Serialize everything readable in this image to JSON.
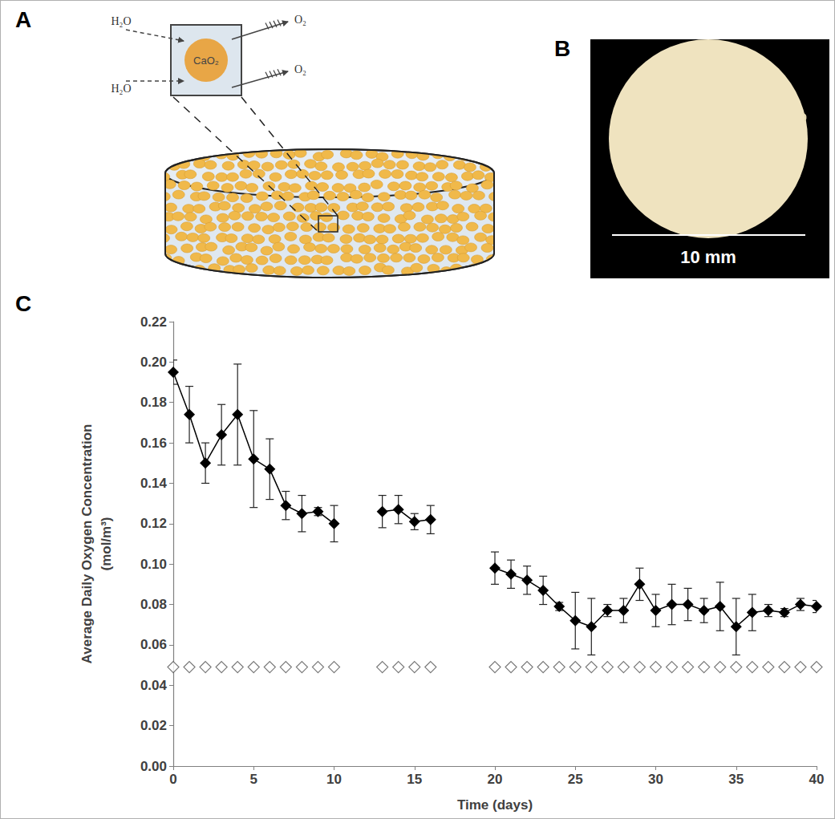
{
  "panels": {
    "letters": [
      "A",
      "B",
      "C"
    ],
    "A": {
      "particle": "CaO₂",
      "inputs": [
        "H₂O",
        "H₂O"
      ],
      "outputs": [
        "O₂",
        "O₂"
      ]
    },
    "B": {
      "scale_bar": "10 mm"
    }
  },
  "chart_data": {
    "type": "line",
    "xlabel": "Time (days)",
    "ylabel": "Average Daily Oxygen Concentration (mol/m³)",
    "x": [
      0,
      1,
      2,
      3,
      4,
      5,
      6,
      7,
      8,
      9,
      10,
      11,
      12,
      13,
      14,
      15,
      16,
      17,
      18,
      19,
      20,
      21,
      22,
      23,
      24,
      25,
      26,
      27,
      28,
      29,
      30,
      31,
      32,
      33,
      34,
      35,
      36,
      37,
      38,
      39,
      40
    ],
    "series": [
      {
        "type": "line",
        "color": "#000000",
        "marker": "diamond",
        "line_style": "solid",
        "values": [
          0.195,
          0.174,
          0.15,
          0.164,
          0.174,
          0.152,
          0.147,
          0.129,
          0.125,
          0.126,
          0.12,
          null,
          null,
          0.126,
          0.127,
          0.121,
          0.122,
          null,
          null,
          null,
          0.098,
          0.095,
          0.092,
          0.087,
          0.079,
          0.072,
          0.069,
          0.077,
          0.077,
          0.09,
          0.077,
          0.08,
          0.08,
          0.077,
          0.079,
          0.069,
          0.076,
          0.077,
          0.076,
          0.08,
          0.079
        ],
        "errors": [
          0.006,
          0.014,
          0.01,
          0.015,
          0.025,
          0.024,
          0.015,
          0.007,
          0.009,
          0.002,
          0.009,
          null,
          null,
          0.008,
          0.007,
          0.004,
          0.007,
          null,
          null,
          null,
          0.008,
          0.007,
          0.007,
          0.007,
          0.002,
          0.014,
          0.014,
          0.003,
          0.006,
          0.008,
          0.008,
          0.01,
          0.008,
          0.006,
          0.012,
          0.014,
          0.009,
          0.003,
          0.002,
          0.003,
          0.003
        ]
      },
      {
        "type": "scatter",
        "color": "#555555",
        "marker": "diamond-open",
        "values": [
          0.049,
          0.049,
          0.049,
          0.049,
          0.049,
          0.049,
          0.049,
          0.049,
          0.049,
          0.049,
          0.049,
          null,
          null,
          0.049,
          0.049,
          0.049,
          0.049,
          null,
          null,
          null,
          0.049,
          0.049,
          0.049,
          0.049,
          0.049,
          0.049,
          0.049,
          0.049,
          0.049,
          0.049,
          0.049,
          0.049,
          0.049,
          0.049,
          0.049,
          0.049,
          0.049,
          0.049,
          0.049,
          0.049,
          0.049
        ]
      }
    ],
    "xlim": [
      0,
      40
    ],
    "xticks": [
      0,
      5,
      10,
      15,
      20,
      25,
      30,
      35,
      40
    ],
    "ylim": [
      0,
      0.22
    ],
    "yticks": [
      {
        "value": 0,
        "label": "0.00"
      },
      {
        "value": 0.02,
        "label": "0.02"
      },
      {
        "value": 0.04,
        "label": "0.04"
      },
      {
        "value": 0.06,
        "label": "0.06"
      },
      {
        "value": 0.08,
        "label": "0.08"
      },
      {
        "value": 0.1,
        "label": "0.10"
      },
      {
        "value": 0.12,
        "label": "0.12"
      },
      {
        "value": 0.14,
        "label": "0.14"
      },
      {
        "value": 0.16,
        "label": "0.16"
      },
      {
        "value": 0.18,
        "label": "0.18"
      },
      {
        "value": 0.2,
        "label": "0.20"
      },
      {
        "value": 0.22,
        "label": "0.22"
      }
    ],
    "grid": false
  }
}
